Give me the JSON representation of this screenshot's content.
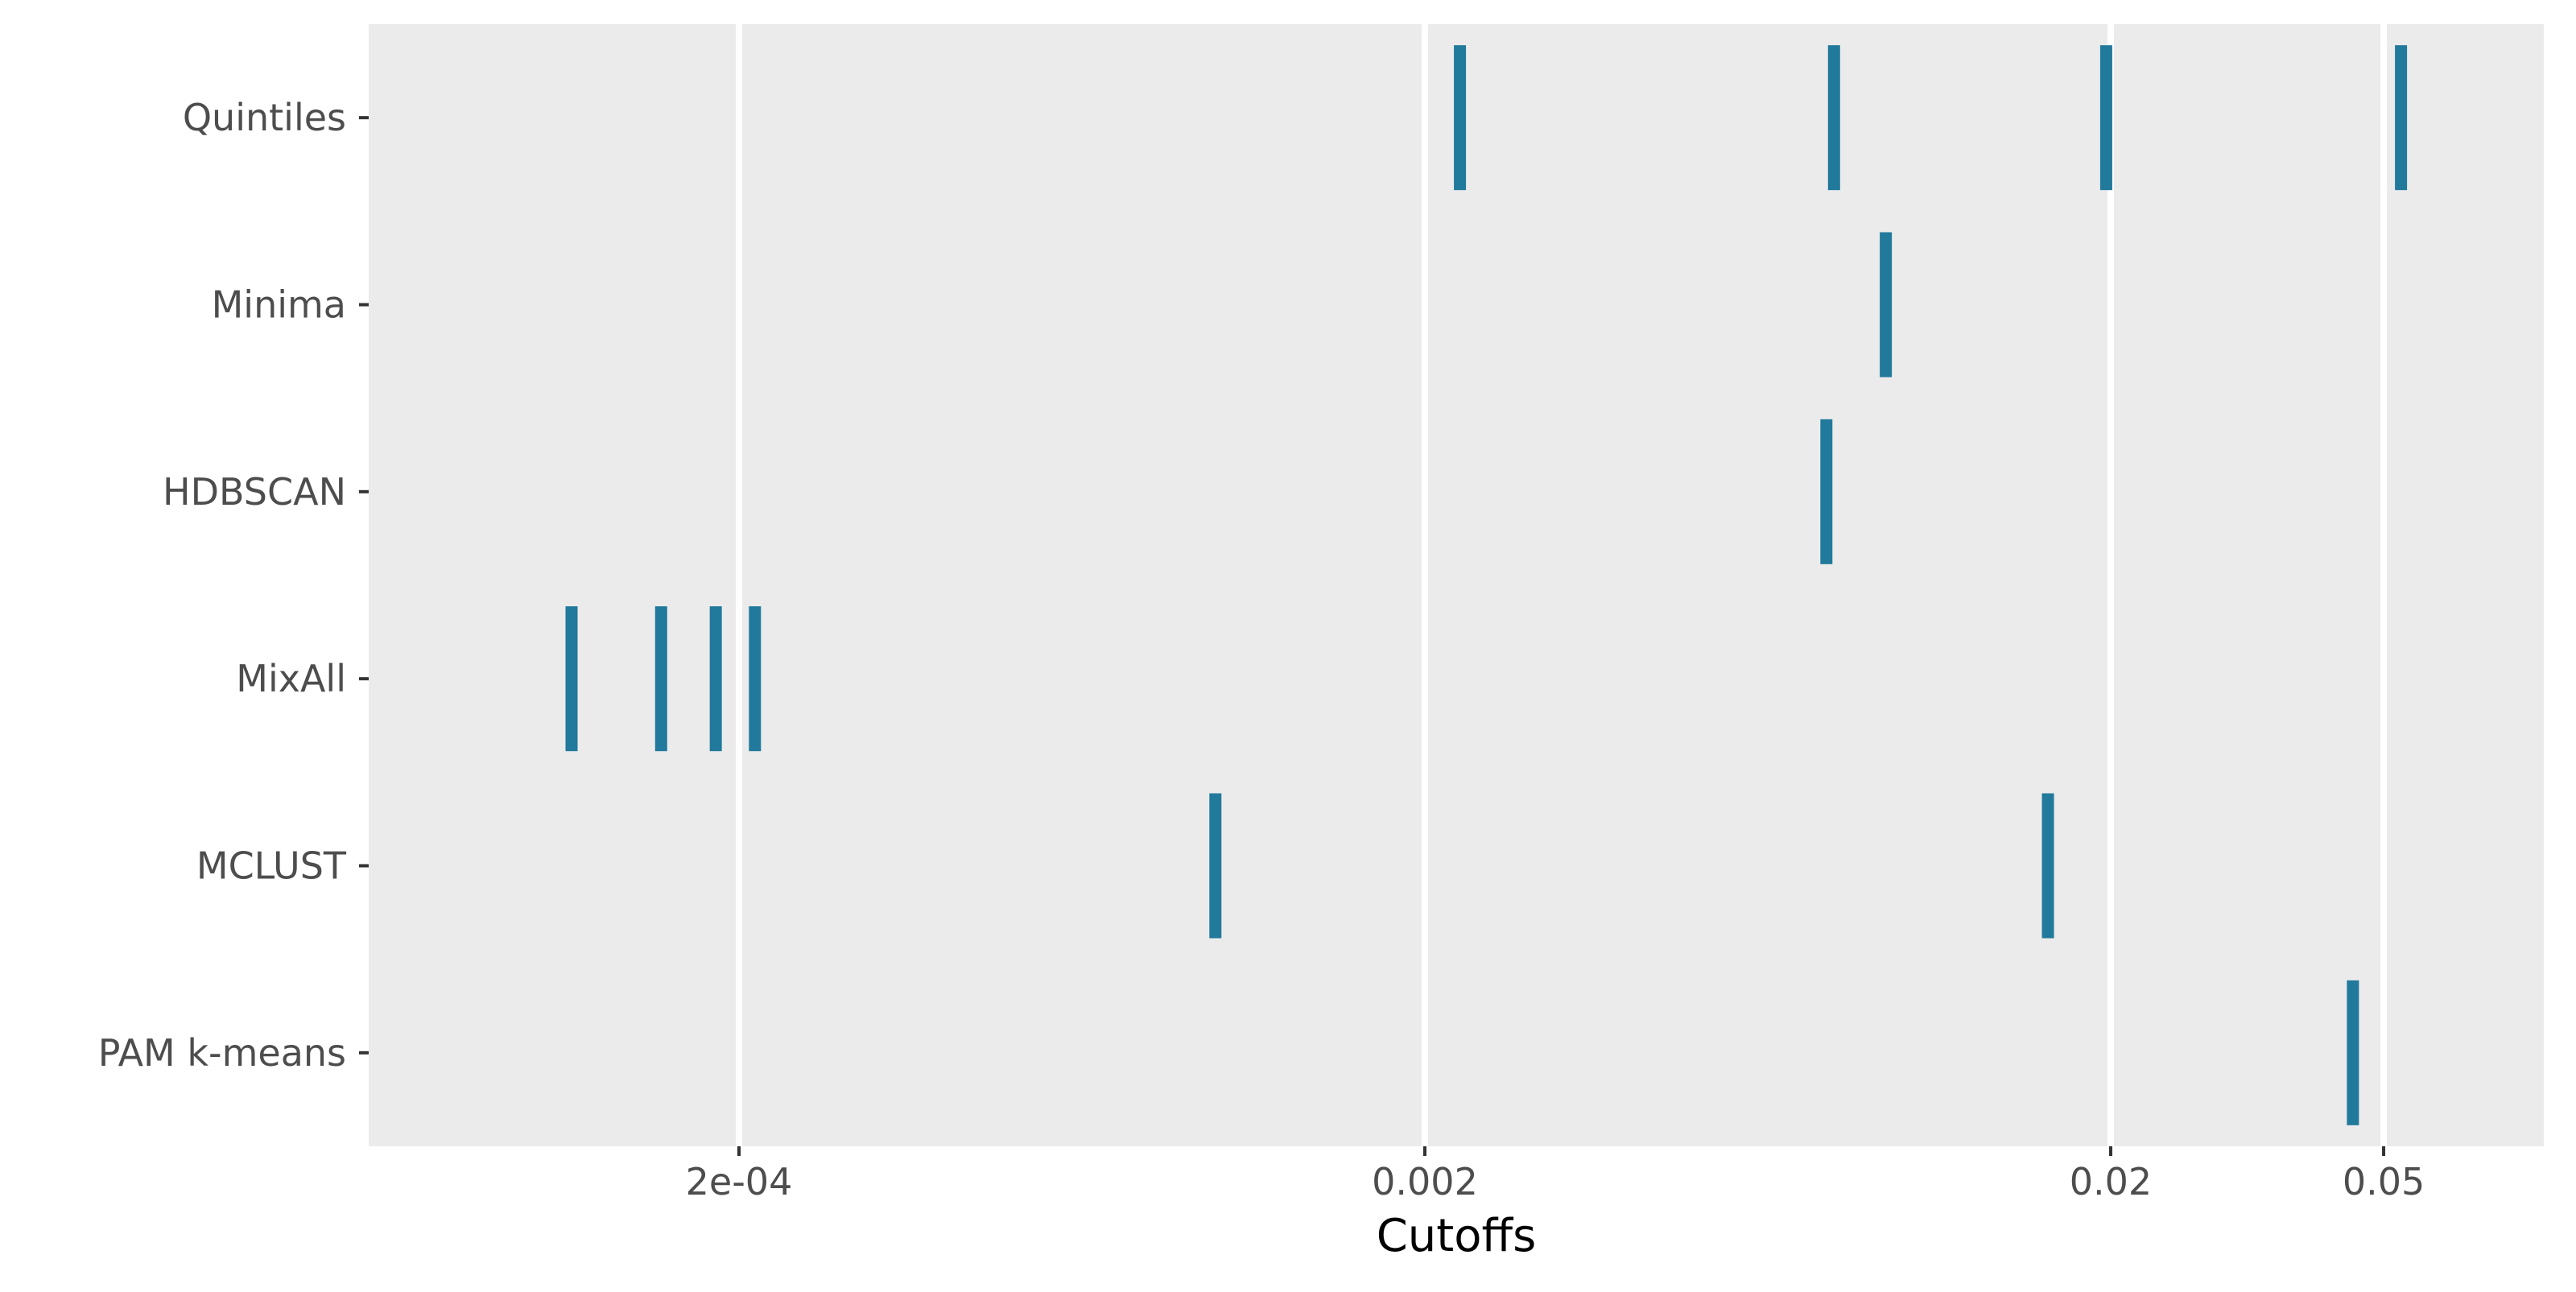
{
  "chart_data": {
    "type": "strip",
    "title": "",
    "xlabel": "Cutoffs",
    "ylabel": "",
    "x_scale": "log10",
    "xlim": [
      0.0001,
      0.05
    ],
    "x_ticks": [
      {
        "value": 0.0002,
        "label": "2e-04"
      },
      {
        "value": 0.002,
        "label": "0.002"
      },
      {
        "value": 0.02,
        "label": "0.02"
      },
      {
        "value": 0.05,
        "label": "0.05"
      }
    ],
    "grid": "major-x",
    "legend": "none",
    "categories": [
      "Quintiles",
      "Minima",
      "HDBSCAN",
      "MixAll",
      "MCLUST",
      "PAM k-means"
    ],
    "series": [
      {
        "category": "Quintiles",
        "values": [
          0.00225,
          0.0079,
          0.0197,
          0.053
        ]
      },
      {
        "category": "Minima",
        "values": [
          0.0094
        ]
      },
      {
        "category": "HDBSCAN",
        "values": [
          0.0077
        ]
      },
      {
        "category": "MixAll",
        "values": [
          0.000114,
          0.000154,
          0.000185,
          0.000211
        ]
      },
      {
        "category": "MCLUST",
        "values": [
          0.00099,
          0.0162
        ]
      },
      {
        "category": "PAM k-means",
        "values": [
          0.0451
        ]
      }
    ],
    "colors": {
      "mark": "#21799b",
      "panel": "#ebebeb",
      "grid": "#ffffff"
    }
  }
}
